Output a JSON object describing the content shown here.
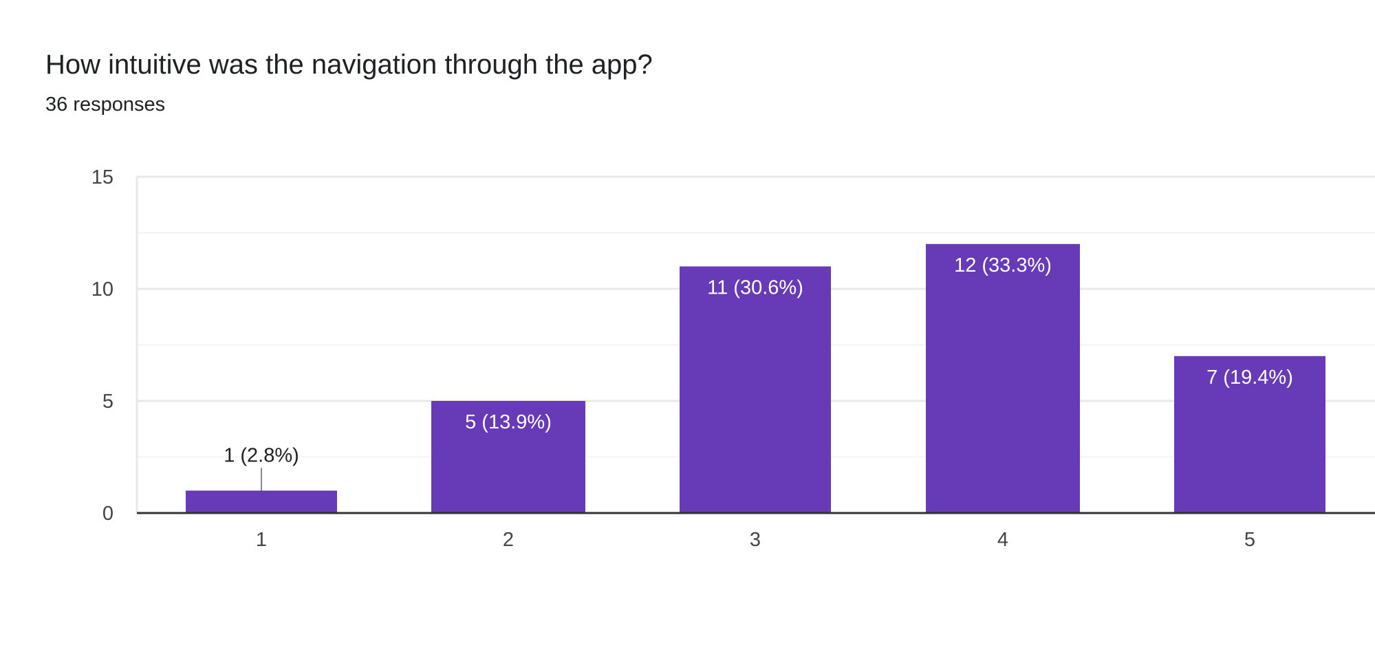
{
  "question": {
    "title": "How intuitive was the navigation through the app?",
    "responses": "36 responses"
  },
  "colors": {
    "bar": "#673ab7",
    "grid_major": "#e8e8e8",
    "grid_minor": "#f3f3f3",
    "baseline": "#333333",
    "label_inside": "#ffffff",
    "label_outside": "#202124"
  },
  "chart_data": {
    "type": "bar",
    "title": "",
    "xlabel": "",
    "ylabel": "",
    "categories": [
      "1",
      "2",
      "3",
      "4",
      "5"
    ],
    "values": [
      1,
      5,
      11,
      12,
      7
    ],
    "data_labels": [
      "1 (2.8%)",
      "5 (13.9%)",
      "11 (30.6%)",
      "12 (33.3%)",
      "7 (19.4%)"
    ],
    "ylim": [
      0,
      15
    ],
    "yticks": [
      0,
      5,
      10,
      15
    ],
    "grid": true,
    "legend": "none"
  }
}
